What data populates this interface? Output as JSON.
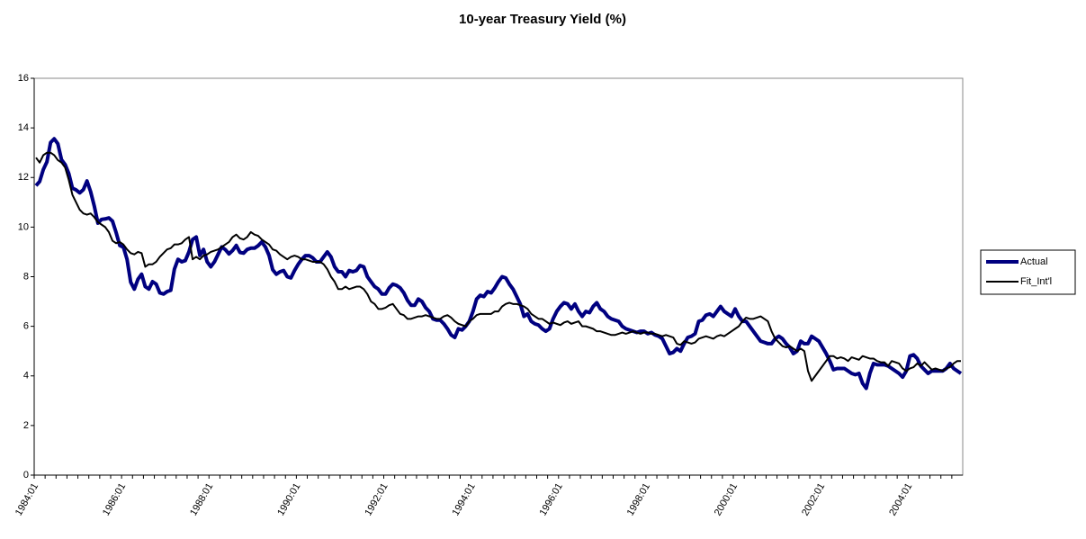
{
  "chart_data": {
    "type": "line",
    "title": "10-year Treasury Yield (%)",
    "categories": [
      "1984:01",
      null,
      null,
      null,
      null,
      null,
      null,
      null,
      null,
      null,
      null,
      null,
      null,
      null,
      null,
      null,
      null,
      null,
      null,
      null,
      null,
      null,
      null,
      null,
      "1986:01",
      null,
      null,
      null,
      null,
      null,
      null,
      null,
      null,
      null,
      null,
      null,
      null,
      null,
      null,
      null,
      null,
      null,
      null,
      null,
      null,
      null,
      null,
      null,
      "1988:01",
      null,
      null,
      null,
      null,
      null,
      null,
      null,
      null,
      null,
      null,
      null,
      null,
      null,
      null,
      null,
      null,
      null,
      null,
      null,
      null,
      null,
      null,
      null,
      "1990:01",
      null,
      null,
      null,
      null,
      null,
      null,
      null,
      null,
      null,
      null,
      null,
      null,
      null,
      null,
      null,
      null,
      null,
      null,
      null,
      null,
      null,
      null,
      null,
      "1992:01",
      null,
      null,
      null,
      null,
      null,
      null,
      null,
      null,
      null,
      null,
      null,
      null,
      null,
      null,
      null,
      null,
      null,
      null,
      null,
      null,
      null,
      null,
      null,
      "1994:01",
      null,
      null,
      null,
      null,
      null,
      null,
      null,
      null,
      null,
      null,
      null,
      null,
      null,
      null,
      null,
      null,
      null,
      null,
      null,
      null,
      null,
      null,
      null,
      "1996:01",
      null,
      null,
      null,
      null,
      null,
      null,
      null,
      null,
      null,
      null,
      null,
      null,
      null,
      null,
      null,
      null,
      null,
      null,
      null,
      null,
      null,
      null,
      null,
      "1998:01",
      null,
      null,
      null,
      null,
      null,
      null,
      null,
      null,
      null,
      null,
      null,
      null,
      null,
      null,
      null,
      null,
      null,
      null,
      null,
      null,
      null,
      null,
      null,
      "2000:01",
      null,
      null,
      null,
      null,
      null,
      null,
      null,
      null,
      null,
      null,
      null,
      null,
      null,
      null,
      null,
      null,
      null,
      null,
      null,
      null,
      null,
      null,
      null,
      "2002:01",
      null,
      null,
      null,
      null,
      null,
      null,
      null,
      null,
      null,
      null,
      null,
      null,
      null,
      null,
      null,
      null,
      null,
      null,
      null,
      null,
      null,
      null,
      null,
      "2004:01",
      null,
      null,
      null,
      null,
      null,
      null,
      null,
      null,
      null,
      null,
      null,
      null,
      null,
      null
    ],
    "series": [
      {
        "name": "Actual",
        "color": "#000080",
        "width": 4,
        "values": [
          11.67,
          11.84,
          12.32,
          12.63,
          13.41,
          13.56,
          13.36,
          12.72,
          12.52,
          12.16,
          11.57,
          11.5,
          11.38,
          11.51,
          11.86,
          11.43,
          10.85,
          10.16,
          10.31,
          10.33,
          10.37,
          10.24,
          9.78,
          9.26,
          9.19,
          8.7,
          7.78,
          7.5,
          7.9,
          8.1,
          7.6,
          7.5,
          7.8,
          7.7,
          7.35,
          7.3,
          7.4,
          7.45,
          8.3,
          8.7,
          8.6,
          8.65,
          9.0,
          9.5,
          9.6,
          8.86,
          9.1,
          8.6,
          8.4,
          8.6,
          8.9,
          9.2,
          9.09,
          8.92,
          9.06,
          9.26,
          8.98,
          8.95,
          9.1,
          9.15,
          9.15,
          9.25,
          9.4,
          9.2,
          8.86,
          8.28,
          8.1,
          8.2,
          8.25,
          8.0,
          7.95,
          8.25,
          8.5,
          8.7,
          8.85,
          8.85,
          8.76,
          8.6,
          8.6,
          8.8,
          9.0,
          8.8,
          8.4,
          8.2,
          8.2,
          8.0,
          8.25,
          8.2,
          8.25,
          8.45,
          8.4,
          8.0,
          7.8,
          7.6,
          7.5,
          7.3,
          7.3,
          7.55,
          7.7,
          7.65,
          7.55,
          7.35,
          7.05,
          6.85,
          6.85,
          7.1,
          7.0,
          6.75,
          6.6,
          6.3,
          6.25,
          6.25,
          6.1,
          5.9,
          5.65,
          5.55,
          5.9,
          5.85,
          6.0,
          6.2,
          6.6,
          7.1,
          7.25,
          7.2,
          7.4,
          7.35,
          7.55,
          7.8,
          8.0,
          7.95,
          7.7,
          7.5,
          7.2,
          6.9,
          6.4,
          6.5,
          6.2,
          6.1,
          6.05,
          5.9,
          5.8,
          5.9,
          6.3,
          6.6,
          6.8,
          6.95,
          6.9,
          6.7,
          6.9,
          6.6,
          6.4,
          6.6,
          6.55,
          6.8,
          6.95,
          6.7,
          6.6,
          6.4,
          6.3,
          6.25,
          6.2,
          6.0,
          5.9,
          5.85,
          5.8,
          5.75,
          5.8,
          5.8,
          5.7,
          5.75,
          5.65,
          5.6,
          5.5,
          5.2,
          4.9,
          4.95,
          5.1,
          5.0,
          5.3,
          5.55,
          5.6,
          5.7,
          6.2,
          6.25,
          6.45,
          6.5,
          6.4,
          6.6,
          6.8,
          6.6,
          6.5,
          6.4,
          6.7,
          6.4,
          6.2,
          6.2,
          6.0,
          5.8,
          5.6,
          5.4,
          5.35,
          5.3,
          5.3,
          5.5,
          5.6,
          5.5,
          5.3,
          5.15,
          4.9,
          5.0,
          5.4,
          5.3,
          5.3,
          5.6,
          5.5,
          5.4,
          5.15,
          4.9,
          4.6,
          4.25,
          4.3,
          4.3,
          4.3,
          4.2,
          4.1,
          4.05,
          4.1,
          3.7,
          3.5,
          4.1,
          4.5,
          4.45,
          4.45,
          4.45,
          4.4,
          4.3,
          4.2,
          4.1,
          3.95,
          4.2,
          4.8,
          4.85,
          4.7,
          4.4,
          4.25,
          4.1,
          4.2,
          4.2,
          4.2,
          4.2,
          4.3,
          4.5,
          4.3,
          4.2,
          4.1
        ]
      },
      {
        "name": "Fit_Int'l",
        "color": "#000000",
        "width": 2,
        "values": [
          12.8,
          12.6,
          12.9,
          13.0,
          13.0,
          12.9,
          12.7,
          12.6,
          12.4,
          11.9,
          11.3,
          11.0,
          10.7,
          10.55,
          10.5,
          10.55,
          10.4,
          10.2,
          10.1,
          10.0,
          9.8,
          9.45,
          9.35,
          9.4,
          9.3,
          9.1,
          8.95,
          8.9,
          9.0,
          8.95,
          8.4,
          8.5,
          8.5,
          8.6,
          8.8,
          8.95,
          9.1,
          9.15,
          9.3,
          9.3,
          9.35,
          9.5,
          9.6,
          8.7,
          8.8,
          8.7,
          8.85,
          8.9,
          9.0,
          9.05,
          9.1,
          9.2,
          9.3,
          9.4,
          9.6,
          9.7,
          9.55,
          9.5,
          9.6,
          9.8,
          9.7,
          9.65,
          9.5,
          9.4,
          9.3,
          9.1,
          9.05,
          8.9,
          8.8,
          8.7,
          8.8,
          8.85,
          8.8,
          8.7,
          8.7,
          8.65,
          8.6,
          8.6,
          8.6,
          8.5,
          8.3,
          8.0,
          7.8,
          7.5,
          7.5,
          7.6,
          7.5,
          7.55,
          7.6,
          7.6,
          7.5,
          7.3,
          7.0,
          6.9,
          6.7,
          6.7,
          6.75,
          6.85,
          6.9,
          6.7,
          6.5,
          6.45,
          6.3,
          6.3,
          6.35,
          6.4,
          6.4,
          6.45,
          6.4,
          6.35,
          6.3,
          6.3,
          6.4,
          6.45,
          6.35,
          6.2,
          6.1,
          6.05,
          6.0,
          6.2,
          6.3,
          6.45,
          6.5,
          6.5,
          6.5,
          6.5,
          6.6,
          6.6,
          6.8,
          6.9,
          6.95,
          6.9,
          6.9,
          6.85,
          6.8,
          6.7,
          6.5,
          6.4,
          6.3,
          6.3,
          6.2,
          6.1,
          6.15,
          6.1,
          6.05,
          6.15,
          6.2,
          6.1,
          6.15,
          6.2,
          6.0,
          6.0,
          5.95,
          5.9,
          5.8,
          5.8,
          5.75,
          5.7,
          5.65,
          5.65,
          5.7,
          5.75,
          5.7,
          5.75,
          5.8,
          5.75,
          5.7,
          5.75,
          5.75,
          5.7,
          5.7,
          5.65,
          5.6,
          5.65,
          5.6,
          5.55,
          5.3,
          5.25,
          5.4,
          5.35,
          5.3,
          5.35,
          5.5,
          5.55,
          5.6,
          5.55,
          5.5,
          5.6,
          5.65,
          5.6,
          5.7,
          5.8,
          5.9,
          6.0,
          6.2,
          6.35,
          6.3,
          6.3,
          6.35,
          6.4,
          6.3,
          6.2,
          5.8,
          5.5,
          5.35,
          5.2,
          5.15,
          5.2,
          5.1,
          5.0,
          5.1,
          5.0,
          4.2,
          3.8,
          4.0,
          4.2,
          4.4,
          4.6,
          4.8,
          4.8,
          4.7,
          4.75,
          4.7,
          4.6,
          4.75,
          4.7,
          4.65,
          4.8,
          4.75,
          4.7,
          4.7,
          4.6,
          4.55,
          4.55,
          4.4,
          4.6,
          4.55,
          4.5,
          4.3,
          4.2,
          4.3,
          4.35,
          4.5,
          4.4,
          4.55,
          4.4,
          4.25,
          4.3,
          4.25,
          4.2,
          4.3,
          4.35,
          4.5,
          4.6,
          4.6
        ]
      }
    ],
    "ylim": [
      0,
      16
    ],
    "yticks": [
      0,
      2,
      4,
      6,
      8,
      10,
      12,
      14,
      16
    ],
    "legend": "right"
  }
}
